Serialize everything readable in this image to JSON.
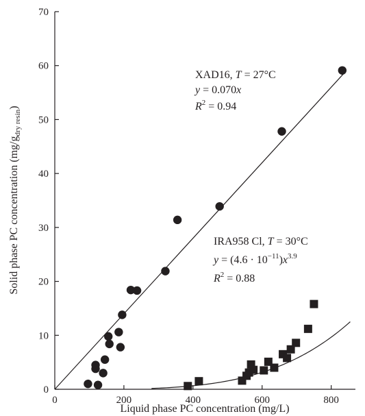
{
  "chart_data": {
    "type": "scatter",
    "xlabel": "Liquid phase PC concentration (mg/L)",
    "ylabel": {
      "pre": "Solid phase PC concentration (mg/g",
      "sub": "dry resin",
      "post": ")"
    },
    "xlim": [
      0,
      870
    ],
    "ylim": [
      0,
      70
    ],
    "xticks": [
      0,
      200,
      400,
      600,
      800
    ],
    "yticks": [
      0,
      10,
      20,
      30,
      40,
      50,
      60,
      70
    ],
    "grid": false,
    "series": [
      {
        "marker": "circle",
        "color": "#231f20",
        "points": [
          [
            96,
            1.0
          ],
          [
            118,
            4.5
          ],
          [
            118,
            3.8
          ],
          [
            125,
            0.8
          ],
          [
            140,
            3.0
          ],
          [
            145,
            5.5
          ],
          [
            155,
            9.8
          ],
          [
            158,
            8.4
          ],
          [
            185,
            10.6
          ],
          [
            190,
            7.8
          ],
          [
            195,
            13.8
          ],
          [
            220,
            18.4
          ],
          [
            238,
            18.3
          ],
          [
            320,
            21.9
          ],
          [
            355,
            31.4
          ],
          [
            477,
            33.9
          ],
          [
            657,
            47.8
          ],
          [
            832,
            59.1
          ]
        ],
        "fit": {
          "model": "linear",
          "slope": 0.07,
          "x_range": [
            0,
            835
          ]
        }
      },
      {
        "marker": "square",
        "color": "#231f20",
        "points": [
          [
            385,
            0.6
          ],
          [
            417,
            1.5
          ],
          [
            542,
            1.6
          ],
          [
            555,
            2.5
          ],
          [
            562,
            3.1
          ],
          [
            568,
            4.6
          ],
          [
            575,
            3.6
          ],
          [
            605,
            3.5
          ],
          [
            618,
            5.1
          ],
          [
            635,
            4.0
          ],
          [
            660,
            6.5
          ],
          [
            672,
            5.8
          ],
          [
            683,
            7.4
          ],
          [
            698,
            8.6
          ],
          [
            733,
            11.2
          ],
          [
            750,
            15.8
          ]
        ],
        "fit": {
          "model": "power",
          "coef": 4.6e-11,
          "exponent": 3.9,
          "x_range": [
            280,
            855
          ]
        }
      }
    ],
    "annotations": {
      "xad": {
        "line1_pre": "XAD16, ",
        "line1_var": "T",
        "line1_post": " = 27°C",
        "line2_var": "y",
        "line2_eq": " = 0.070",
        "line2_x": "x",
        "line3_var": "R",
        "line3_sup": "2",
        "line3_post": " = 0.94"
      },
      "ira": {
        "line1_pre": "IRA958 Cl, ",
        "line1_var": "T",
        "line1_post": " = 30°C",
        "line2_var": "y",
        "line2_eq": " = (4.6 · 10",
        "line2_exp": "−11",
        "line2_close": ")",
        "line2_x": "x",
        "line2_pow": "3.9",
        "line3_var": "R",
        "line3_sup": "2",
        "line3_post": " = 0.88"
      }
    }
  }
}
